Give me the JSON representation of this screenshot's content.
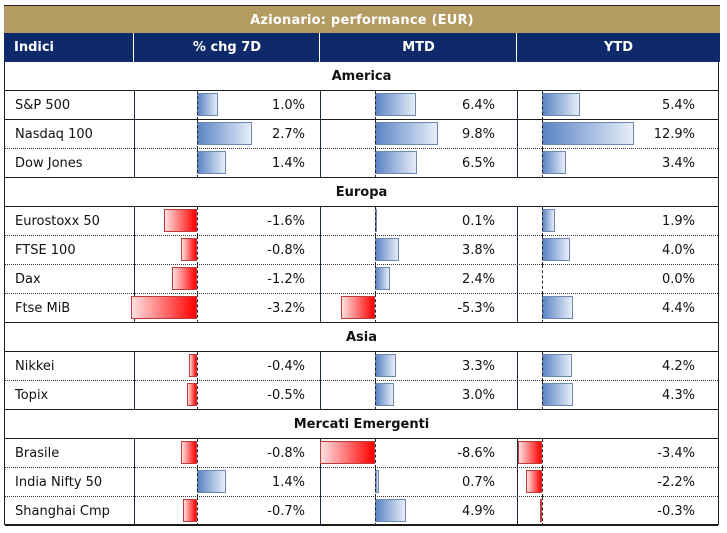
{
  "title": "Azionario: performance (EUR)",
  "columns": [
    "Indici",
    "% chg 7D",
    "MTD",
    "YTD"
  ],
  "colors": {
    "title_bg": "#b39b62",
    "header_bg": "#0e2a6a",
    "positive_bar": "#5b84c4",
    "negative_bar": "#ff0000"
  },
  "groups": [
    {
      "name": "America",
      "rows": [
        {
          "name": "S&P 500",
          "chg7d": "1.0%",
          "mtd": "6.4%",
          "ytd": "5.4%"
        },
        {
          "name": "Nasdaq 100",
          "chg7d": "2.7%",
          "mtd": "9.8%",
          "ytd": "12.9%"
        },
        {
          "name": "Dow Jones",
          "chg7d": "1.4%",
          "mtd": "6.5%",
          "ytd": "3.4%"
        }
      ]
    },
    {
      "name": "Europa",
      "rows": [
        {
          "name": "Eurostoxx 50",
          "chg7d": "-1.6%",
          "mtd": "0.1%",
          "ytd": "1.9%"
        },
        {
          "name": "FTSE 100",
          "chg7d": "-0.8%",
          "mtd": "3.8%",
          "ytd": "4.0%"
        },
        {
          "name": "Dax",
          "chg7d": "-1.2%",
          "mtd": "2.4%",
          "ytd": "0.0%"
        },
        {
          "name": "Ftse MiB",
          "chg7d": "-3.2%",
          "mtd": "-5.3%",
          "ytd": "4.4%"
        }
      ]
    },
    {
      "name": "Asia",
      "rows": [
        {
          "name": "Nikkei",
          "chg7d": "-0.4%",
          "mtd": "3.3%",
          "ytd": "4.2%"
        },
        {
          "name": "Topix",
          "chg7d": "-0.5%",
          "mtd": "3.0%",
          "ytd": "4.3%"
        }
      ]
    },
    {
      "name": "Mercati Emergenti",
      "rows": [
        {
          "name": "Brasile",
          "chg7d": "-0.8%",
          "mtd": "-8.6%",
          "ytd": "-3.4%"
        },
        {
          "name": "India Nifty 50",
          "chg7d": "1.4%",
          "mtd": "0.7%",
          "ytd": "-2.2%"
        },
        {
          "name": "Shanghai Cmp",
          "chg7d": "-0.7%",
          "mtd": "4.9%",
          "ytd": "-0.3%"
        }
      ]
    }
  ]
}
